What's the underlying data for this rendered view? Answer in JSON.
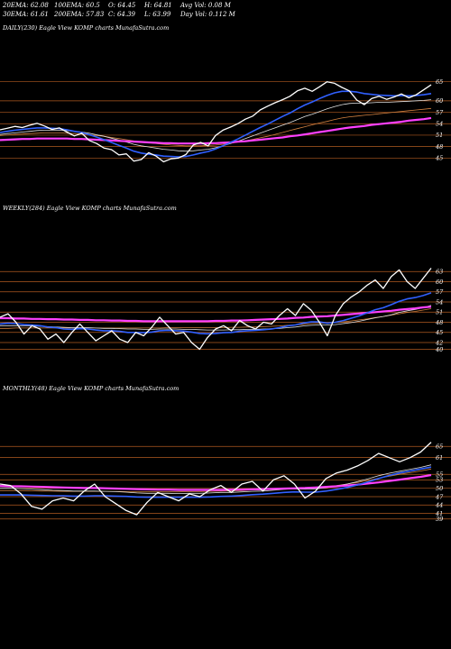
{
  "header": {
    "row1": [
      "20EMA: 62.08",
      "100EMA: 60.5",
      "O: 64.45",
      "H: 64.81",
      "Avg Vol: 0.08  M"
    ],
    "row2": [
      "30EMA: 61.61",
      "200EMA: 57.83",
      "C: 64.39",
      "L: 63.99",
      "Day Vol: 0.112  M"
    ]
  },
  "colors": {
    "background": "#000000",
    "gridline": "#b05a20",
    "price": "#ffffff",
    "ema_fast": "#3060ff",
    "ema_slow": "#ff40ff",
    "ema_mid": "#d08040",
    "ema_long": "#e0e0e0"
  },
  "panels": [
    {
      "title": "DAILY(230) Eagle   View  KOMP charts MunafaSutra.com"
    },
    {
      "title": "WEEKLY(284) Eagle   View  KOMP charts MunafaSutra.com"
    },
    {
      "title": "MONTHLY(48) Eagle   View  KOMP charts MunafaSutra.com"
    }
  ],
  "chart_data": [
    {
      "type": "line",
      "title": "DAILY(230)",
      "y_ticks": [
        65,
        60,
        57,
        54,
        51,
        48,
        45
      ],
      "ylim": [
        42,
        68
      ],
      "series": [
        {
          "color": "price",
          "values": [
            52.4,
            52.8,
            53.3,
            53.0,
            53.6,
            54.1,
            53.4,
            52.5,
            52.9,
            51.8,
            50.8,
            51.5,
            49.6,
            48.8,
            47.6,
            47.2,
            45.8,
            46.1,
            44.2,
            44.6,
            46.4,
            45.5,
            44.0,
            44.8,
            45.0,
            45.9,
            48.4,
            49.1,
            48.2,
            50.9,
            52.3,
            53.1,
            54.0,
            55.2,
            56.0,
            57.6,
            58.6,
            59.5,
            60.3,
            61.2,
            62.6,
            63.3,
            62.5,
            63.7,
            65.0,
            64.6,
            63.5,
            62.6,
            60.2,
            59.0,
            60.6,
            61.2,
            60.4,
            61.0,
            61.8,
            60.8,
            61.6,
            62.9,
            64.2
          ]
        },
        {
          "color": "ema_fast",
          "values": [
            51.7,
            52.0,
            52.3,
            52.5,
            52.7,
            52.9,
            52.9,
            52.8,
            52.7,
            52.4,
            52.0,
            51.7,
            51.1,
            50.5,
            49.8,
            49.1,
            48.3,
            47.6,
            46.8,
            46.3,
            46.0,
            45.8,
            45.5,
            45.4,
            45.3,
            45.4,
            45.8,
            46.3,
            46.7,
            47.4,
            48.2,
            49.1,
            50.0,
            51.0,
            52.0,
            53.0,
            53.9,
            54.9,
            55.9,
            56.8,
            57.9,
            58.9,
            59.7,
            60.6,
            61.4,
            62.1,
            62.5,
            62.5,
            62.3,
            61.9,
            61.7,
            61.5,
            61.4,
            61.3,
            61.4,
            61.3,
            61.4,
            61.6,
            61.9
          ]
        },
        {
          "color": "ema_long",
          "values": [
            51.2,
            51.4,
            51.6,
            51.8,
            52.0,
            52.2,
            52.3,
            52.3,
            52.3,
            52.2,
            52.0,
            51.8,
            51.5,
            51.1,
            50.7,
            50.2,
            49.7,
            49.2,
            48.6,
            48.2,
            47.9,
            47.6,
            47.3,
            47.1,
            46.9,
            46.8,
            46.9,
            47.1,
            47.3,
            47.7,
            48.2,
            48.8,
            49.4,
            50.1,
            50.8,
            51.5,
            52.2,
            52.9,
            53.6,
            54.3,
            55.1,
            55.9,
            56.5,
            57.2,
            57.9,
            58.5,
            59.0,
            59.3,
            59.4,
            59.4,
            59.5,
            59.6,
            59.6,
            59.7,
            59.8,
            59.9,
            60.0,
            60.1,
            60.3
          ]
        },
        {
          "color": "ema_mid",
          "values": [
            50.9,
            51.0,
            51.2,
            51.3,
            51.4,
            51.5,
            51.6,
            51.6,
            51.6,
            51.5,
            51.4,
            51.3,
            51.1,
            50.9,
            50.7,
            50.4,
            50.1,
            49.8,
            49.5,
            49.2,
            49.0,
            48.8,
            48.6,
            48.4,
            48.3,
            48.2,
            48.2,
            48.2,
            48.3,
            48.4,
            48.6,
            48.9,
            49.2,
            49.5,
            49.9,
            50.3,
            50.7,
            51.2,
            51.7,
            52.2,
            52.7,
            53.2,
            53.7,
            54.2,
            54.6,
            55.1,
            55.5,
            55.8,
            56.0,
            56.2,
            56.4,
            56.6,
            56.8,
            57.0,
            57.2,
            57.4,
            57.6,
            57.8,
            58.0
          ]
        },
        {
          "color": "ema_slow",
          "values": [
            49.7,
            49.8,
            49.9,
            50.0,
            50.0,
            50.1,
            50.1,
            50.1,
            50.1,
            50.1,
            50.0,
            50.0,
            49.9,
            49.8,
            49.7,
            49.6,
            49.5,
            49.4,
            49.3,
            49.2,
            49.1,
            49.0,
            48.9,
            48.9,
            48.8,
            48.8,
            48.8,
            48.8,
            48.9,
            48.9,
            49.0,
            49.1,
            49.3,
            49.4,
            49.6,
            49.8,
            50.0,
            50.2,
            50.4,
            50.7,
            50.9,
            51.2,
            51.5,
            51.8,
            52.1,
            52.4,
            52.7,
            53.0,
            53.2,
            53.4,
            53.7,
            53.9,
            54.1,
            54.3,
            54.5,
            54.8,
            55.0,
            55.2,
            55.5
          ]
        }
      ]
    },
    {
      "type": "line",
      "title": "WEEKLY(284)",
      "y_ticks": [
        63,
        60,
        57,
        54,
        51,
        48,
        45,
        42,
        40
      ],
      "ylim": [
        38,
        66
      ],
      "series": [
        {
          "color": "price",
          "values": [
            49.5,
            50.5,
            48.0,
            44.5,
            47.0,
            46.0,
            43.0,
            44.5,
            42.0,
            45.0,
            47.5,
            45.0,
            42.5,
            44.0,
            45.5,
            43.0,
            42.0,
            45.0,
            44.0,
            46.5,
            49.5,
            47.0,
            44.5,
            45.0,
            42.0,
            40.0,
            43.5,
            46.0,
            47.0,
            45.5,
            48.5,
            47.0,
            46.0,
            48.0,
            47.5,
            50.0,
            52.0,
            50.0,
            53.5,
            51.5,
            48.0,
            44.0,
            50.0,
            53.5,
            55.5,
            57.0,
            59.0,
            60.5,
            58.0,
            61.5,
            63.5,
            60.0,
            58.0,
            61.0,
            64.0
          ]
        },
        {
          "color": "ema_fast",
          "values": [
            47.5,
            47.7,
            47.6,
            47.3,
            47.2,
            47.0,
            46.6,
            46.4,
            46.0,
            45.9,
            46.1,
            46.0,
            45.7,
            45.5,
            45.5,
            45.3,
            45.0,
            45.0,
            44.9,
            45.1,
            45.5,
            45.6,
            45.5,
            45.4,
            45.1,
            44.7,
            44.6,
            44.7,
            44.9,
            45.0,
            45.3,
            45.5,
            45.6,
            45.8,
            46.0,
            46.4,
            46.9,
            47.2,
            47.8,
            48.1,
            48.1,
            47.7,
            48.0,
            48.5,
            49.2,
            49.9,
            50.8,
            51.7,
            52.3,
            53.2,
            54.2,
            54.9,
            55.3,
            55.9,
            56.7
          ]
        },
        {
          "color": "ema_long",
          "values": [
            47.0,
            47.0,
            47.0,
            46.9,
            46.9,
            46.8,
            46.7,
            46.6,
            46.5,
            46.4,
            46.4,
            46.4,
            46.3,
            46.2,
            46.2,
            46.1,
            46.0,
            46.0,
            45.9,
            45.9,
            46.0,
            46.0,
            46.0,
            45.9,
            45.9,
            45.8,
            45.7,
            45.7,
            45.7,
            45.8,
            45.8,
            45.9,
            45.9,
            46.0,
            46.1,
            46.2,
            46.4,
            46.6,
            46.9,
            47.1,
            47.2,
            47.2,
            47.3,
            47.6,
            47.9,
            48.3,
            48.8,
            49.3,
            49.7,
            50.2,
            50.9,
            51.4,
            51.8,
            52.3,
            53.0
          ]
        },
        {
          "color": "ema_mid",
          "values": [
            46.2,
            46.2,
            46.3,
            46.3,
            46.3,
            46.3,
            46.3,
            46.3,
            46.3,
            46.3,
            46.3,
            46.3,
            46.3,
            46.3,
            46.3,
            46.3,
            46.3,
            46.3,
            46.3,
            46.3,
            46.3,
            46.4,
            46.4,
            46.4,
            46.4,
            46.4,
            46.4,
            46.4,
            46.4,
            46.5,
            46.5,
            46.6,
            46.6,
            46.7,
            46.8,
            46.9,
            47.1,
            47.2,
            47.4,
            47.6,
            47.7,
            47.8,
            47.9,
            48.1,
            48.4,
            48.7,
            49.0,
            49.4,
            49.7,
            50.1,
            50.5,
            50.9,
            51.2,
            51.6,
            52.0
          ]
        },
        {
          "color": "ema_slow",
          "values": [
            49.2,
            49.2,
            49.1,
            49.1,
            49.0,
            49.0,
            48.9,
            48.9,
            48.8,
            48.8,
            48.7,
            48.7,
            48.6,
            48.6,
            48.5,
            48.5,
            48.4,
            48.4,
            48.3,
            48.3,
            48.3,
            48.3,
            48.3,
            48.3,
            48.3,
            48.3,
            48.3,
            48.4,
            48.4,
            48.5,
            48.5,
            48.6,
            48.7,
            48.8,
            48.9,
            49.0,
            49.1,
            49.3,
            49.4,
            49.6,
            49.7,
            49.8,
            50.0,
            50.2,
            50.4,
            50.6,
            50.8,
            51.0,
            51.2,
            51.4,
            51.7,
            51.9,
            52.1,
            52.4,
            52.6
          ]
        }
      ]
    },
    {
      "type": "line",
      "title": "MONTHLY(48)",
      "y_ticks": [
        65,
        61,
        55,
        53,
        50,
        47,
        44,
        41,
        39
      ],
      "ylim": [
        36,
        68
      ],
      "series": [
        {
          "color": "price",
          "values": [
            51.5,
            51.0,
            48.0,
            43.5,
            42.5,
            45.5,
            46.5,
            45.5,
            49.0,
            51.5,
            47.0,
            44.5,
            42.0,
            40.5,
            45.0,
            48.5,
            47.0,
            45.5,
            48.0,
            47.0,
            49.5,
            51.0,
            48.5,
            51.5,
            52.5,
            49.0,
            53.0,
            54.5,
            51.5,
            46.5,
            49.0,
            53.5,
            55.5,
            56.5,
            58.0,
            60.0,
            62.5,
            61.0,
            59.5,
            61.0,
            63.0,
            66.5
          ]
        },
        {
          "color": "ema_fast",
          "values": [
            47.6,
            47.6,
            47.6,
            47.5,
            47.4,
            47.3,
            47.3,
            47.2,
            47.2,
            47.3,
            47.3,
            47.2,
            47.1,
            46.9,
            46.8,
            46.8,
            46.8,
            46.8,
            46.8,
            46.8,
            46.9,
            47.1,
            47.2,
            47.4,
            47.7,
            47.9,
            48.2,
            48.5,
            48.7,
            48.6,
            48.6,
            49.0,
            49.6,
            50.3,
            51.2,
            52.3,
            53.5,
            54.6,
            55.5,
            56.2,
            56.9,
            57.6
          ]
        },
        {
          "color": "ema_long",
          "values": [
            50.0,
            50.0,
            49.9,
            49.7,
            49.5,
            49.3,
            49.2,
            49.0,
            49.0,
            49.0,
            48.9,
            48.8,
            48.6,
            48.3,
            48.2,
            48.2,
            48.2,
            48.1,
            48.2,
            48.2,
            48.3,
            48.5,
            48.5,
            48.7,
            48.9,
            49.0,
            49.3,
            49.6,
            49.8,
            49.7,
            49.8,
            50.2,
            50.8,
            51.5,
            52.4,
            53.4,
            54.5,
            55.4,
            56.1,
            56.8,
            57.5,
            58.4
          ]
        },
        {
          "color": "ema_mid",
          "values": [
            49.2,
            49.2,
            49.2,
            49.1,
            49.0,
            49.0,
            48.9,
            48.9,
            48.9,
            48.9,
            48.9,
            48.9,
            48.8,
            48.7,
            48.7,
            48.7,
            48.7,
            48.7,
            48.8,
            48.8,
            48.9,
            49.0,
            49.1,
            49.2,
            49.4,
            49.5,
            49.7,
            49.9,
            50.1,
            50.2,
            50.3,
            50.6,
            51.0,
            51.5,
            52.1,
            52.8,
            53.6,
            54.3,
            55.0,
            55.6,
            56.2,
            56.9
          ]
        },
        {
          "color": "ema_slow",
          "values": [
            50.8,
            50.7,
            50.7,
            50.6,
            50.5,
            50.4,
            50.3,
            50.2,
            50.1,
            50.1,
            50.0,
            49.9,
            49.8,
            49.7,
            49.6,
            49.5,
            49.5,
            49.4,
            49.4,
            49.4,
            49.4,
            49.4,
            49.5,
            49.5,
            49.6,
            49.7,
            49.8,
            49.9,
            50.0,
            50.1,
            50.3,
            50.5,
            50.7,
            51.0,
            51.3,
            51.7,
            52.1,
            52.6,
            53.1,
            53.6,
            54.1,
            54.7
          ]
        }
      ]
    }
  ]
}
